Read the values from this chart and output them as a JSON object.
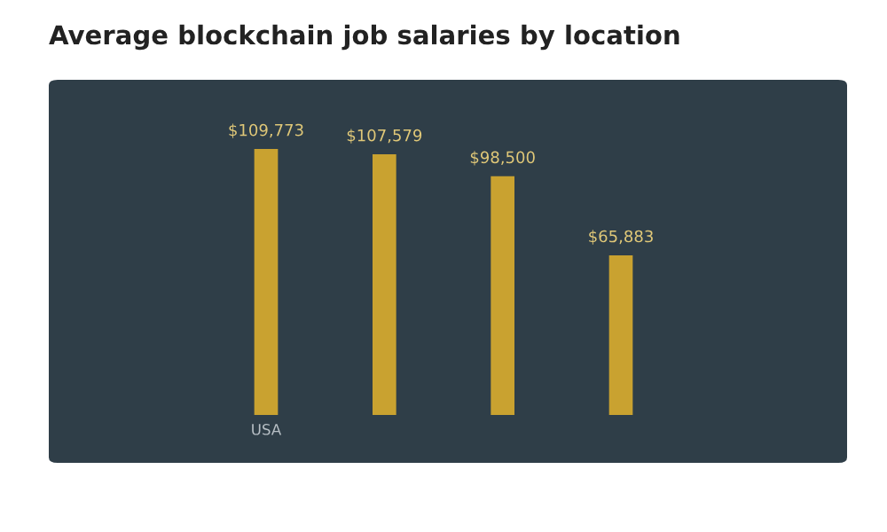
{
  "chart_data": {
    "type": "bar",
    "title": "Average blockchain job salaries by location",
    "categories": [
      "USA",
      null,
      null,
      null
    ],
    "values": [
      109773,
      107579,
      98500,
      65883
    ],
    "value_labels": [
      "$109,773",
      "$107,579",
      "$98,500",
      "$65,883"
    ],
    "color": "#c9a230"
  }
}
